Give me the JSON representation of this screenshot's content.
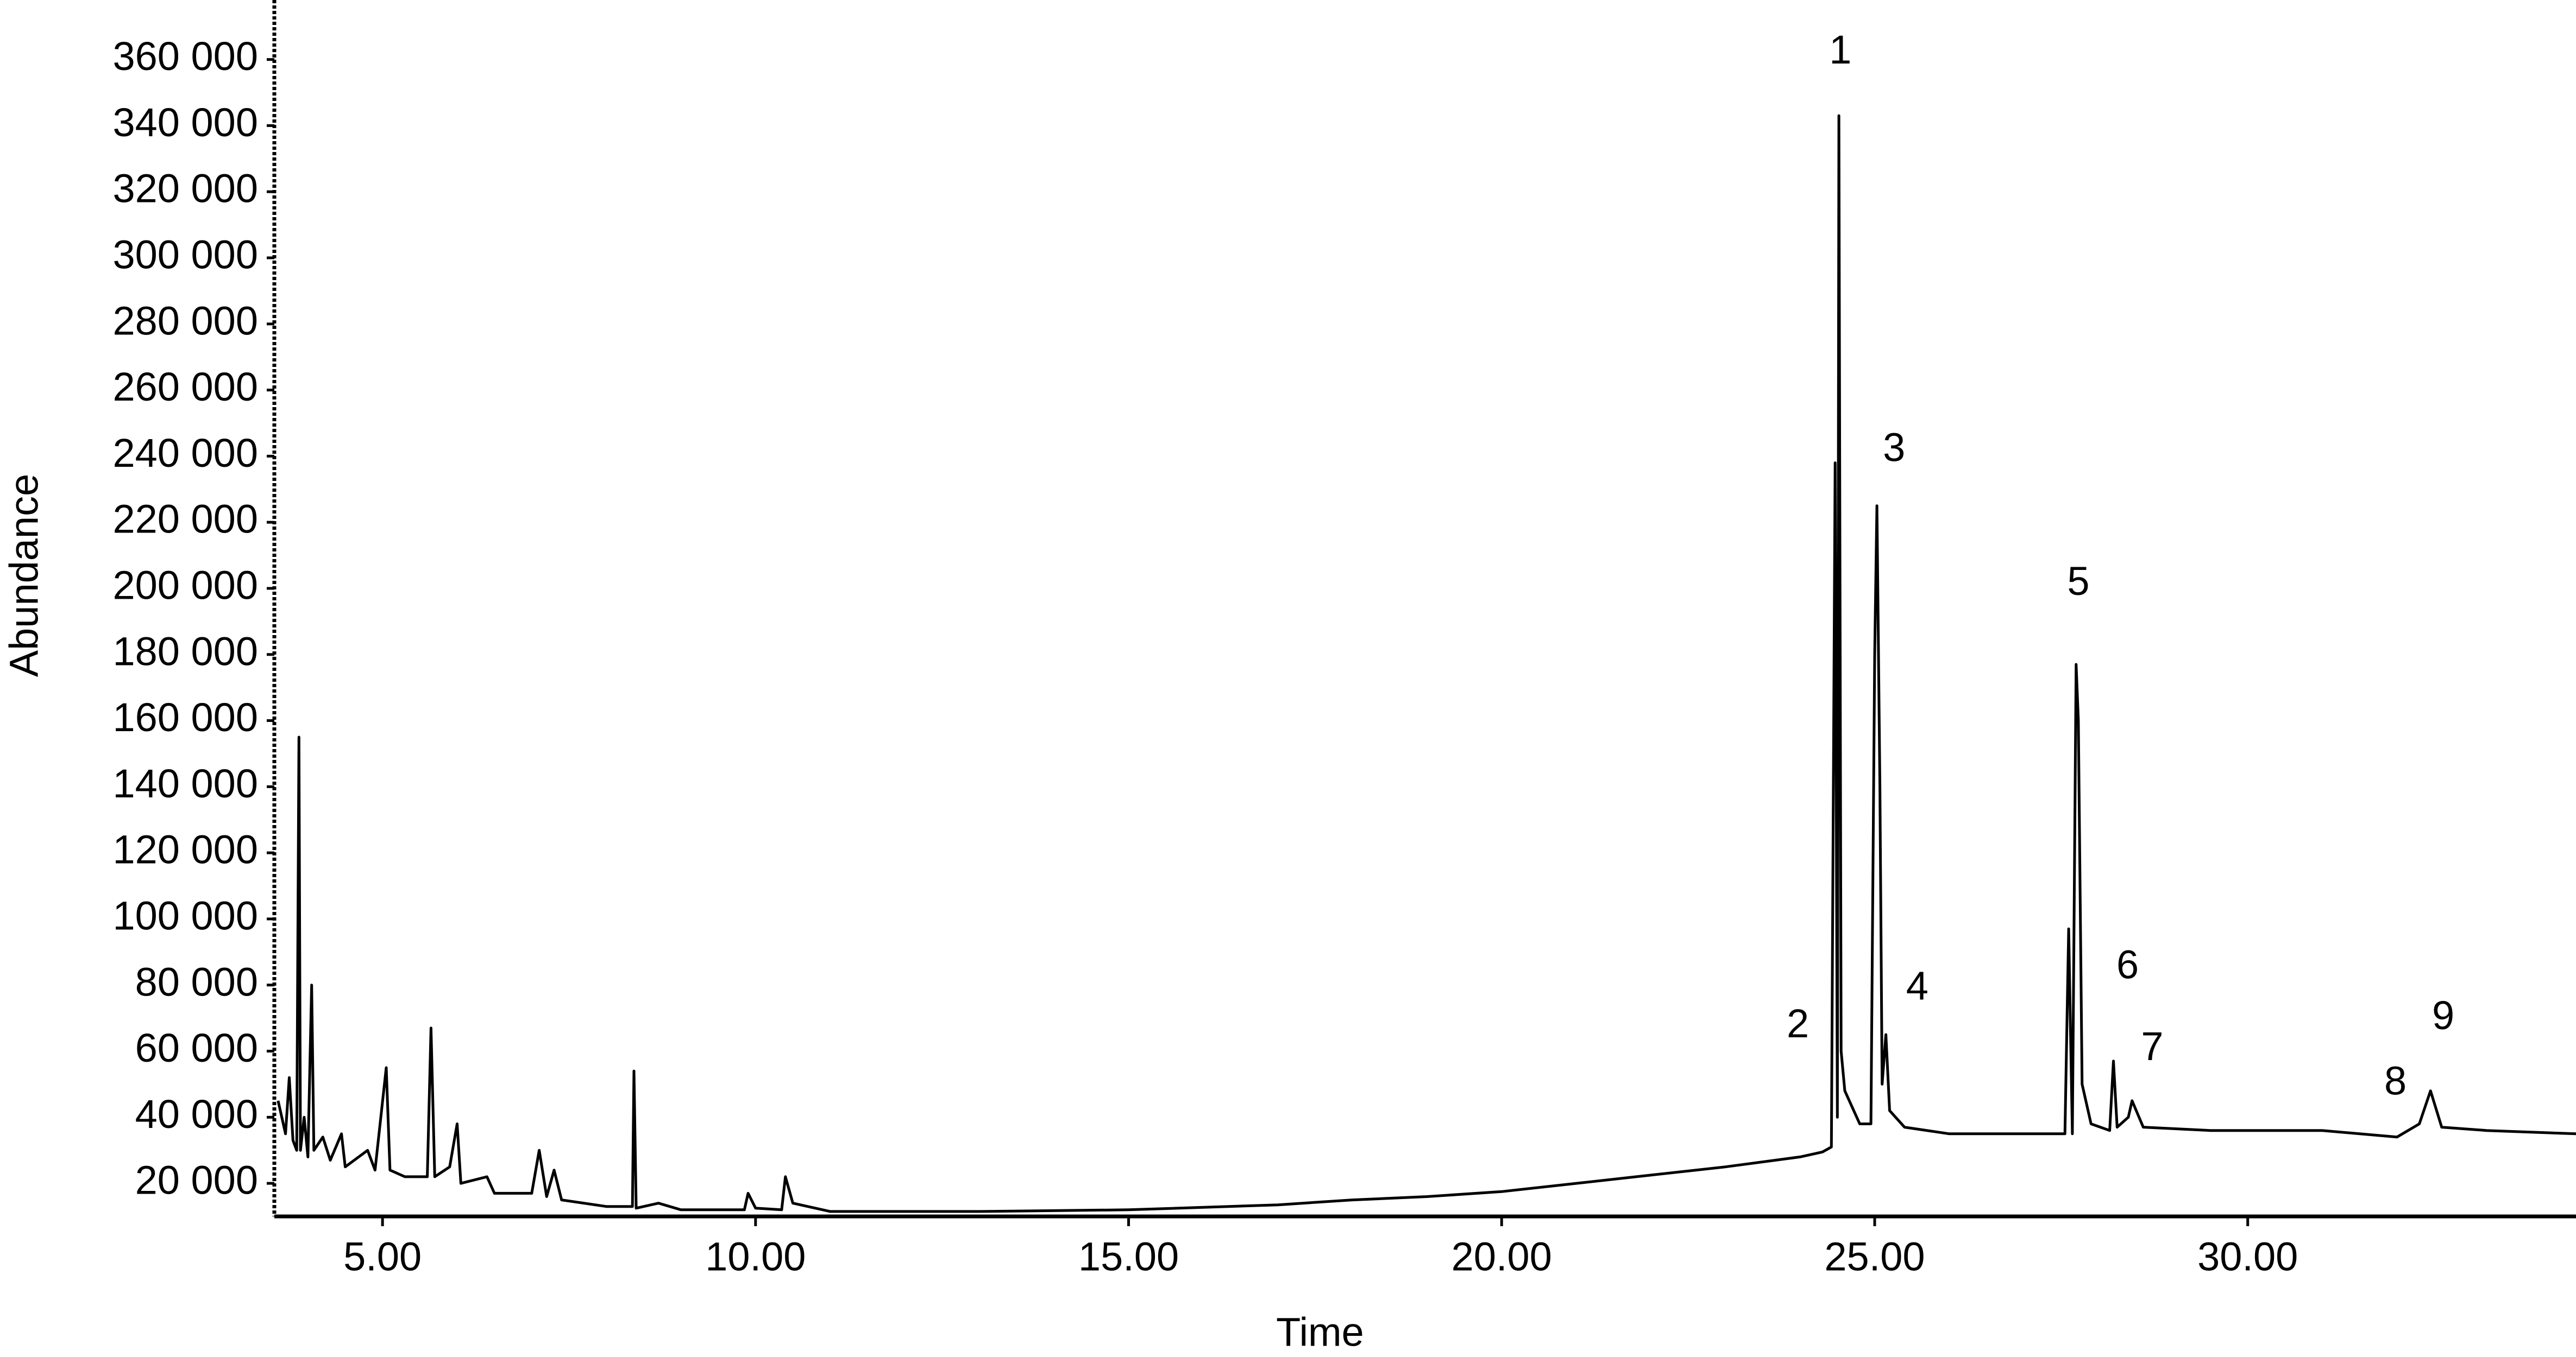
{
  "chart_data": {
    "type": "line",
    "xlabel": "Time",
    "ylabel": "Abundance",
    "color": "#000000",
    "x": [
      3.6,
      3.7,
      3.75,
      3.8,
      3.85,
      3.88,
      3.9,
      3.95,
      4.0,
      4.05,
      4.08,
      4.2,
      4.3,
      4.45,
      4.5,
      4.8,
      4.9,
      5.05,
      5.1,
      5.3,
      5.6,
      5.65,
      5.7,
      5.9,
      6.0,
      6.05,
      6.4,
      6.5,
      7.0,
      7.1,
      7.2,
      7.3,
      7.4,
      8.0,
      8.35,
      8.37,
      8.4,
      8.7,
      9.0,
      9.85,
      9.9,
      10.0,
      10.35,
      10.4,
      10.5,
      11.0,
      13.0,
      15.0,
      17.0,
      18.0,
      19.0,
      20.0,
      21.0,
      22.0,
      23.0,
      24.0,
      24.3,
      24.42,
      24.47,
      24.5,
      24.52,
      24.55,
      24.6,
      24.8,
      24.95,
      25.0,
      25.03,
      25.07,
      25.1,
      25.15,
      25.2,
      25.4,
      26.0,
      27.0,
      27.55,
      27.6,
      27.65,
      27.7,
      27.73,
      27.78,
      27.9,
      28.15,
      28.2,
      28.25,
      28.4,
      28.45,
      28.6,
      29.5,
      31.0,
      32.0,
      32.3,
      32.45,
      32.6,
      33.2,
      34.4
    ],
    "values": [
      45000,
      35000,
      52000,
      33000,
      30000,
      155000,
      30000,
      40000,
      28000,
      80000,
      30000,
      34000,
      27000,
      35000,
      25000,
      30000,
      24000,
      55000,
      24000,
      22000,
      22000,
      67000,
      22000,
      25000,
      38000,
      20000,
      22000,
      17000,
      17000,
      30000,
      16000,
      24000,
      15000,
      13000,
      13000,
      54000,
      12500,
      14000,
      12000,
      12000,
      17000,
      12500,
      12000,
      22000,
      14000,
      11500,
      11500,
      12000,
      13500,
      15000,
      16000,
      17500,
      20000,
      22500,
      25000,
      28000,
      29500,
      31000,
      238000,
      40000,
      343000,
      60000,
      48000,
      38000,
      38000,
      180000,
      225000,
      140000,
      50000,
      65000,
      42000,
      37000,
      35000,
      35000,
      35000,
      97000,
      35000,
      177000,
      160000,
      50000,
      38000,
      36000,
      57000,
      37000,
      40000,
      45000,
      37000,
      36000,
      36000,
      34000,
      38000,
      48000,
      37000,
      36000,
      35000
    ],
    "xlim": [
      3.55,
      34.4
    ],
    "ylim": [
      10000,
      378000
    ],
    "xticks": [
      {
        "value": 5,
        "label": "5.00"
      },
      {
        "value": 10,
        "label": "10.00"
      },
      {
        "value": 15,
        "label": "15.00"
      },
      {
        "value": 20,
        "label": "20.00"
      },
      {
        "value": 25,
        "label": "25.00"
      },
      {
        "value": 30,
        "label": "30.00"
      }
    ],
    "yticks": [
      {
        "value": 20000,
        "label": "20 000"
      },
      {
        "value": 40000,
        "label": "40 000"
      },
      {
        "value": 60000,
        "label": "60 000"
      },
      {
        "value": 80000,
        "label": "80 000"
      },
      {
        "value": 100000,
        "label": "100 000"
      },
      {
        "value": 120000,
        "label": "120 000"
      },
      {
        "value": 140000,
        "label": "140 000"
      },
      {
        "value": 160000,
        "label": "160 000"
      },
      {
        "value": 180000,
        "label": "180 000"
      },
      {
        "value": 200000,
        "label": "200 000"
      },
      {
        "value": 220000,
        "label": "220 000"
      },
      {
        "value": 240000,
        "label": "240 000"
      },
      {
        "value": 260000,
        "label": "260 000"
      },
      {
        "value": 280000,
        "label": "280 000"
      },
      {
        "value": 300000,
        "label": "300 000"
      },
      {
        "value": 320000,
        "label": "320 000"
      },
      {
        "value": 340000,
        "label": "340 000"
      },
      {
        "value": 360000,
        "label": "360 000"
      }
    ],
    "annotations": [
      {
        "text": "1",
        "x": 24.54,
        "y": 362000
      },
      {
        "text": "2",
        "x": 23.97,
        "y": 67400
      },
      {
        "text": "3",
        "x": 25.26,
        "y": 241700
      },
      {
        "text": "4",
        "x": 25.57,
        "y": 78800
      },
      {
        "text": "5",
        "x": 27.73,
        "y": 201200
      },
      {
        "text": "6",
        "x": 28.39,
        "y": 85200
      },
      {
        "text": "7",
        "x": 28.72,
        "y": 60500
      },
      {
        "text": "8",
        "x": 31.98,
        "y": 50100
      },
      {
        "text": "9",
        "x": 32.62,
        "y": 69900
      }
    ]
  }
}
